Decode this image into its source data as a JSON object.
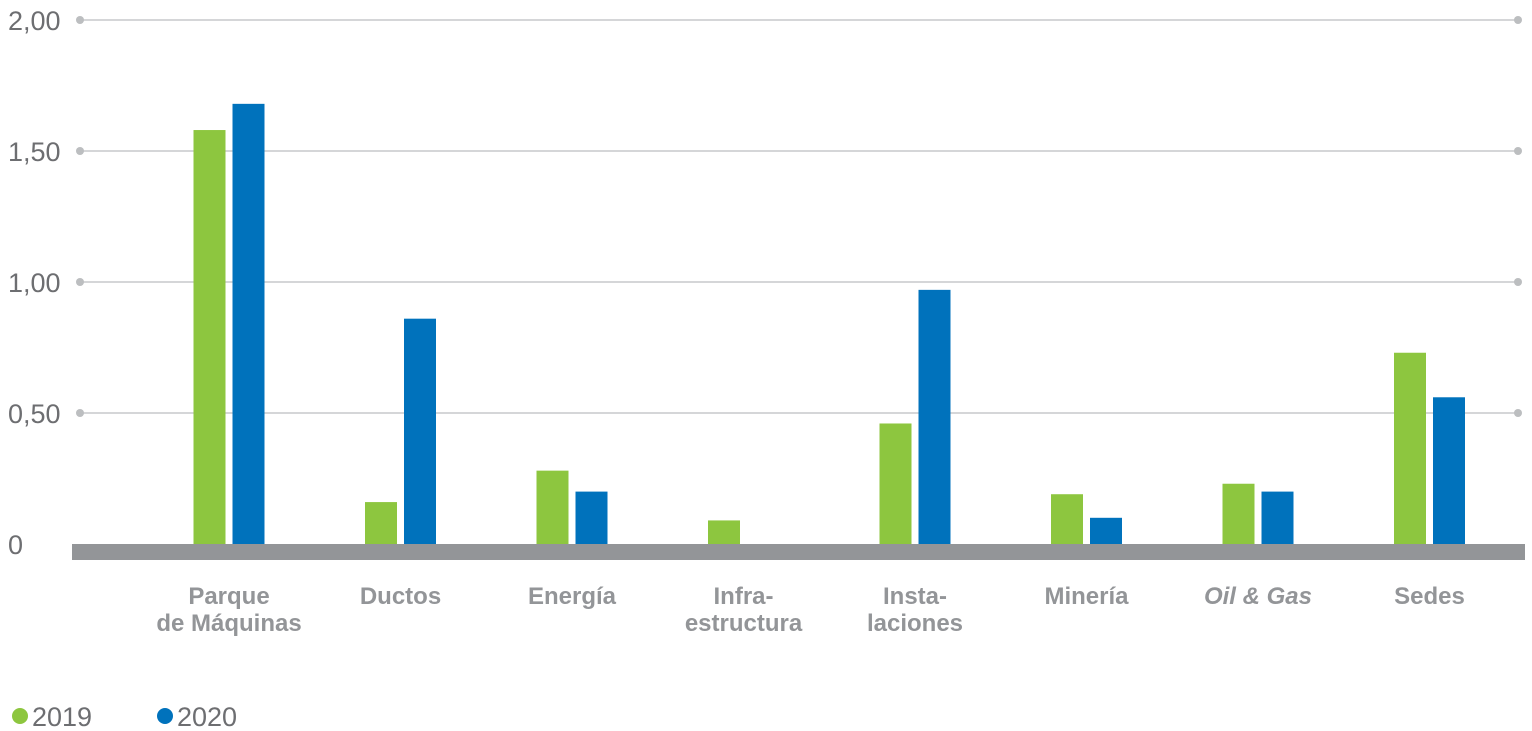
{
  "chart_data": {
    "type": "bar",
    "title": "",
    "xlabel": "",
    "ylabel": "",
    "ylim": [
      0,
      2
    ],
    "y_ticks": [
      "0",
      "0,50",
      "1,00",
      "1,50",
      "2,00"
    ],
    "y_tick_values": [
      0,
      0.5,
      1,
      1.5,
      2
    ],
    "grid": true,
    "legend_position": "bottom-left",
    "categories": [
      {
        "lines": [
          "Parque",
          "de Máquinas"
        ],
        "italic": false
      },
      {
        "lines": [
          "Ductos"
        ],
        "italic": false
      },
      {
        "lines": [
          "Energía"
        ],
        "italic": false
      },
      {
        "lines": [
          "Infra-",
          "estructura"
        ],
        "italic": false
      },
      {
        "lines": [
          "Insta-",
          "laciones"
        ],
        "italic": false
      },
      {
        "lines": [
          "Minería"
        ],
        "italic": false
      },
      {
        "lines": [
          "Oil & Gas"
        ],
        "italic": true
      },
      {
        "lines": [
          "Sedes"
        ],
        "italic": false
      }
    ],
    "series": [
      {
        "name": "2019",
        "color": "#8dc63f",
        "values": [
          1.58,
          0.16,
          0.28,
          0.09,
          0.46,
          0.19,
          0.23,
          0.73
        ]
      },
      {
        "name": "2020",
        "color": "#0072bc",
        "values": [
          1.68,
          0.86,
          0.2,
          0.0,
          0.97,
          0.1,
          0.2,
          0.56
        ]
      }
    ],
    "colors": {
      "grid": "#bcbec0",
      "axis_base": "#939598",
      "tick_text": "#6d6e71",
      "category_text": "#939598"
    }
  }
}
